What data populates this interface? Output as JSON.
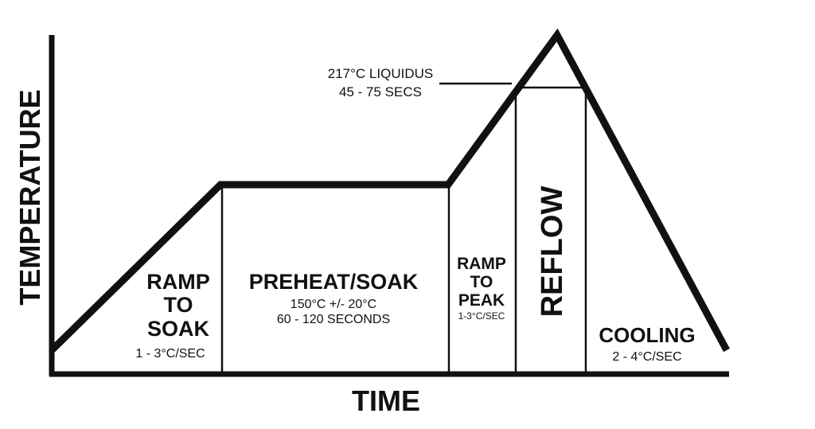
{
  "axes": {
    "y_label": "TEMPERATURE",
    "x_label": "TIME"
  },
  "zones": {
    "ramp_to_soak": {
      "title_lines": [
        "RAMP",
        "TO",
        "SOAK"
      ],
      "rate": "1 - 3°C/SEC"
    },
    "preheat_soak": {
      "title": "PREHEAT/SOAK",
      "temp": "150°C +/- 20°C",
      "duration": "60 - 120 SECONDS"
    },
    "ramp_to_peak": {
      "title_lines": [
        "RAMP",
        "TO",
        "PEAK"
      ],
      "rate": "1-3°C/SEC"
    },
    "reflow": {
      "title": "REFLOW"
    },
    "cooling": {
      "title": "COOLING",
      "rate": "2 - 4°C/SEC"
    }
  },
  "liquidus": {
    "line1": "217°C LIQUIDUS",
    "line2": "45 - 75 SECS"
  },
  "colors": {
    "ink": "#111111",
    "background": "#ffffff"
  }
}
